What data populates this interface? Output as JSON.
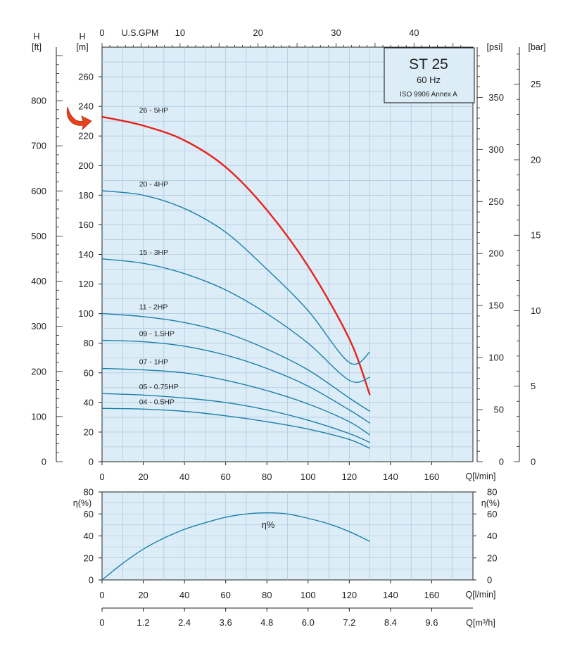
{
  "chart_data": [
    {
      "type": "line",
      "title_box": {
        "model": "ST 25",
        "frequency": "60 Hz",
        "standard": "ISO 9906 Annex A"
      },
      "xlabel": "Q[l/min]",
      "ylabel": "H",
      "ylabel_unit": "[m]",
      "xlim": [
        0,
        180
      ],
      "ylim": [
        0,
        280
      ],
      "x_ticks": [
        "0",
        "20",
        "40",
        "60",
        "80",
        "100",
        "120",
        "140",
        "160"
      ],
      "y_ticks": [
        "0",
        "20",
        "40",
        "60",
        "80",
        "100",
        "120",
        "140",
        "160",
        "180",
        "200",
        "220",
        "240",
        "260"
      ],
      "secondary_axes": {
        "top": {
          "label": "U.S.GPM",
          "ticks": [
            "0",
            "10",
            "20",
            "30",
            "40"
          ]
        },
        "left_outer": {
          "label": "H",
          "unit": "[ft]",
          "ticks": [
            "0",
            "100",
            "200",
            "300",
            "400",
            "500",
            "600",
            "700",
            "800"
          ]
        },
        "right_inner": {
          "unit": "[psi]",
          "ticks": [
            "0",
            "50",
            "100",
            "150",
            "200",
            "250",
            "300",
            "350"
          ]
        },
        "right_outer": {
          "unit": "[bar]",
          "ticks": [
            "0",
            "5",
            "10",
            "15",
            "20",
            "25"
          ]
        }
      },
      "grid": true,
      "highlight_color": "#e8221b",
      "curve_color": "#1b7fa8",
      "series": [
        {
          "name": "26 - 5HP",
          "highlight": true,
          "x": [
            0,
            20,
            40,
            60,
            80,
            100,
            120,
            130
          ],
          "y": [
            233,
            227,
            217,
            199,
            170,
            132,
            83,
            45
          ]
        },
        {
          "name": "20 - 4HP",
          "highlight": false,
          "x": [
            0,
            20,
            40,
            60,
            80,
            100,
            120,
            130
          ],
          "y": [
            183,
            180,
            171,
            155,
            130,
            102,
            67,
            74
          ]
        },
        {
          "name": "15 - 3HP",
          "highlight": false,
          "x": [
            0,
            20,
            40,
            60,
            80,
            100,
            120,
            130
          ],
          "y": [
            137,
            134,
            127,
            116,
            100,
            80,
            55,
            57
          ]
        },
        {
          "name": "11 - 2HP",
          "highlight": false,
          "x": [
            0,
            20,
            40,
            60,
            80,
            100,
            120,
            130
          ],
          "y": [
            100,
            98,
            94,
            87,
            76,
            62,
            43,
            34
          ]
        },
        {
          "name": "09 - 1.5HP",
          "highlight": false,
          "x": [
            0,
            20,
            40,
            60,
            80,
            100,
            120,
            130
          ],
          "y": [
            82,
            81,
            78,
            72,
            63,
            51,
            35,
            26
          ]
        },
        {
          "name": "07 - 1HP",
          "highlight": false,
          "x": [
            0,
            20,
            40,
            60,
            80,
            100,
            120,
            130
          ],
          "y": [
            63,
            62,
            60,
            55,
            48,
            39,
            27,
            18
          ]
        },
        {
          "name": "05 - 0.75HP",
          "highlight": false,
          "x": [
            0,
            20,
            40,
            60,
            80,
            100,
            120,
            130
          ],
          "y": [
            46,
            45,
            43,
            40,
            35,
            28,
            19,
            13
          ]
        },
        {
          "name": "04 - 0.5HP",
          "highlight": false,
          "x": [
            0,
            20,
            40,
            60,
            80,
            100,
            120,
            130
          ],
          "y": [
            36,
            35.5,
            34,
            31,
            27,
            22,
            15,
            9
          ]
        }
      ]
    },
    {
      "type": "line",
      "xlabel": "Q[l/min]",
      "ylabel": "η(%)",
      "xlim": [
        0,
        180
      ],
      "ylim": [
        0,
        80
      ],
      "x_ticks": [
        "0",
        "20",
        "40",
        "60",
        "80",
        "100",
        "120",
        "140",
        "160"
      ],
      "y_ticks": [
        "0",
        "20",
        "40",
        "60",
        "80"
      ],
      "secondary_x_axis": {
        "label": "Q[m³/h]",
        "ticks": [
          "0",
          "1.2",
          "2.4",
          "3.6",
          "4.8",
          "6.0",
          "7.2",
          "8.4",
          "9.6"
        ]
      },
      "grid": true,
      "series": [
        {
          "name": "η%",
          "x": [
            0,
            10,
            20,
            30,
            40,
            50,
            60,
            70,
            80,
            90,
            100,
            110,
            120,
            130
          ],
          "y": [
            0,
            15,
            28,
            38,
            46,
            52,
            57,
            60,
            61,
            60,
            56,
            51,
            44,
            35
          ]
        }
      ]
    }
  ],
  "colors": {
    "plot_bg": "#dcedf8",
    "grid": "#9fc0d6",
    "axis": "#222222",
    "arrow": "#e8431b"
  }
}
